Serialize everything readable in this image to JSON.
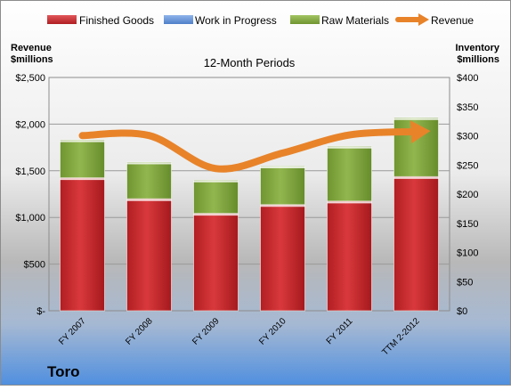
{
  "chart_data": {
    "type": "bar",
    "subtitle": "12-Month Periods",
    "company": "Toro",
    "left_axis": {
      "title_line1": "Revenue",
      "title_line2": "$millions",
      "range": [
        0,
        2500
      ],
      "ticks": [
        "$-",
        "$500",
        "$1,000",
        "$1,500",
        "$2,000",
        "$2,500"
      ]
    },
    "right_axis": {
      "title_line1": "Inventory",
      "title_line2": "$millions",
      "range": [
        0,
        400
      ],
      "ticks": [
        "$0",
        "$50",
        "$100",
        "$150",
        "$200",
        "$250",
        "$300",
        "$350",
        "$400"
      ]
    },
    "categories": [
      "FY 2007",
      "FY 2008",
      "FY 2009",
      "FY 2010",
      "FY 2011",
      "TTM 2-2012"
    ],
    "series": [
      {
        "name": "Finished Goods",
        "kind": "stacked-bar",
        "axis": "right",
        "color": "#C0282B",
        "values": [
          228,
          192,
          167,
          182,
          188,
          230
        ]
      },
      {
        "name": "Work in Progress",
        "kind": "stacked-bar",
        "axis": "right",
        "color": "#5B8BD6",
        "values": [
          0,
          0,
          0,
          0,
          0,
          0
        ]
      },
      {
        "name": "Raw Materials",
        "kind": "stacked-bar",
        "axis": "right",
        "color": "#7FA43C",
        "values": [
          65,
          63,
          57,
          66,
          94,
          101
        ]
      },
      {
        "name": "Revenue",
        "kind": "line",
        "axis": "left",
        "color": "#E8832A",
        "values": [
          1877,
          1878,
          1524,
          1690,
          1884,
          1919
        ]
      }
    ],
    "grid": true,
    "legend": "top"
  }
}
